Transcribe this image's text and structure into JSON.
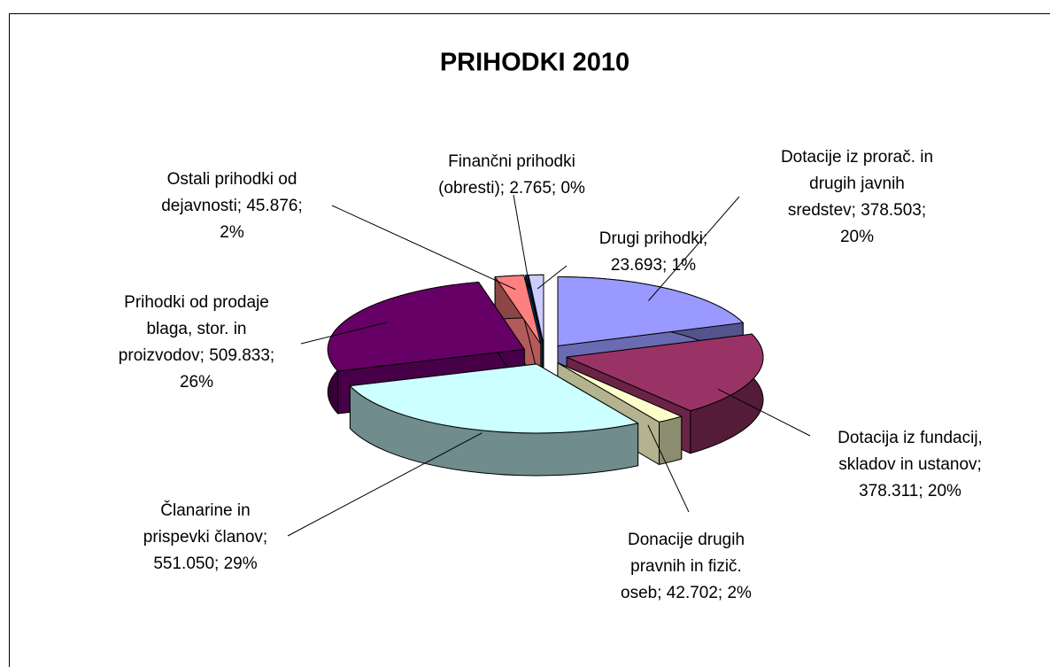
{
  "chart_data": {
    "type": "pie3d",
    "title": "PRIHODKI 2010",
    "values": [
      378503,
      378311,
      42702,
      551050,
      509833,
      45876,
      2765,
      23693
    ],
    "labels": [
      [
        "Dotacije iz prorač. in",
        "drugih javnih",
        "sredstev; 378.503;",
        "20%"
      ],
      [
        "Dotacija iz fundacij,",
        "skladov in ustanov;",
        "378.311; 20%"
      ],
      [
        "Donacije drugih",
        "pravnih in fizič.",
        "oseb; 42.702; 2%"
      ],
      [
        "Članarine in",
        "prispevki članov;",
        "551.050; 29%"
      ],
      [
        "Prihodki od prodaje",
        "blaga, stor. in",
        "proizvodov; 509.833;",
        "26%"
      ],
      [
        "Ostali prihodki od",
        "dejavnosti; 45.876;",
        "2%"
      ],
      [
        "Finančni prihodki",
        "(obresti); 2.765; 0%"
      ],
      [
        "Drugi prihodki;",
        "23.693; 1%"
      ]
    ],
    "colors": [
      "#9999ff",
      "#993366",
      "#ffffcc",
      "#ccffff",
      "#660066",
      "#ff8080",
      "#0066cc",
      "#ccccff"
    ]
  }
}
